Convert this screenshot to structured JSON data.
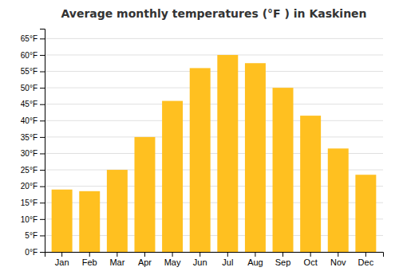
{
  "chart_data": {
    "type": "bar",
    "title": "Average monthly temperatures (°F ) in Kaskinen",
    "categories": [
      "Jan",
      "Feb",
      "Mar",
      "Apr",
      "May",
      "Jun",
      "Jul",
      "Aug",
      "Sep",
      "Oct",
      "Nov",
      "Dec"
    ],
    "values": [
      19.0,
      18.5,
      25.0,
      35.0,
      46.0,
      56.0,
      60.0,
      57.5,
      50.0,
      41.5,
      31.5,
      23.5
    ],
    "color": "#FFC020",
    "ylim": [
      0,
      68
    ],
    "yticks": [
      {
        "value": 0,
        "label": "0°F"
      },
      {
        "value": 5,
        "label": "5°F"
      },
      {
        "value": 10,
        "label": "10°F"
      },
      {
        "value": 15,
        "label": "15°F"
      },
      {
        "value": 20,
        "label": "20°F"
      },
      {
        "value": 25,
        "label": "25°F"
      },
      {
        "value": 30,
        "label": "30°F"
      },
      {
        "value": 35,
        "label": "35°F"
      },
      {
        "value": 40,
        "label": "40°F"
      },
      {
        "value": 45,
        "label": "45°F"
      },
      {
        "value": 50,
        "label": "50°F"
      },
      {
        "value": 55,
        "label": "55°F"
      },
      {
        "value": 60,
        "label": "60°F"
      },
      {
        "value": 65,
        "label": "65°F"
      }
    ],
    "grid": true
  }
}
